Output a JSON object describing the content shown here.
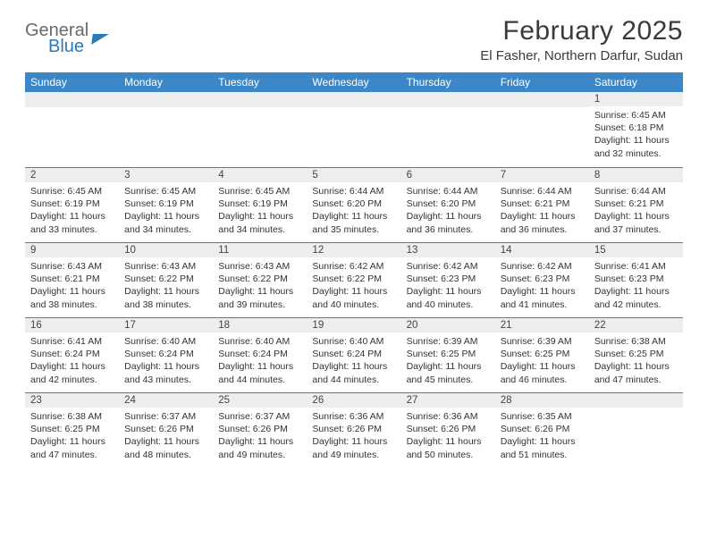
{
  "brand": {
    "top": "General",
    "bottom": "Blue"
  },
  "title": "February 2025",
  "location": "El Fasher, Northern Darfur, Sudan",
  "headerColor": "#3b87c8",
  "dayHeaders": [
    "Sunday",
    "Monday",
    "Tuesday",
    "Wednesday",
    "Thursday",
    "Friday",
    "Saturday"
  ],
  "weeks": [
    [
      {
        "day": "",
        "sunrise": "",
        "sunset": "",
        "daylight": ""
      },
      {
        "day": "",
        "sunrise": "",
        "sunset": "",
        "daylight": ""
      },
      {
        "day": "",
        "sunrise": "",
        "sunset": "",
        "daylight": ""
      },
      {
        "day": "",
        "sunrise": "",
        "sunset": "",
        "daylight": ""
      },
      {
        "day": "",
        "sunrise": "",
        "sunset": "",
        "daylight": ""
      },
      {
        "day": "",
        "sunrise": "",
        "sunset": "",
        "daylight": ""
      },
      {
        "day": "1",
        "sunrise": "Sunrise: 6:45 AM",
        "sunset": "Sunset: 6:18 PM",
        "daylight": "Daylight: 11 hours and 32 minutes."
      }
    ],
    [
      {
        "day": "2",
        "sunrise": "Sunrise: 6:45 AM",
        "sunset": "Sunset: 6:19 PM",
        "daylight": "Daylight: 11 hours and 33 minutes."
      },
      {
        "day": "3",
        "sunrise": "Sunrise: 6:45 AM",
        "sunset": "Sunset: 6:19 PM",
        "daylight": "Daylight: 11 hours and 34 minutes."
      },
      {
        "day": "4",
        "sunrise": "Sunrise: 6:45 AM",
        "sunset": "Sunset: 6:19 PM",
        "daylight": "Daylight: 11 hours and 34 minutes."
      },
      {
        "day": "5",
        "sunrise": "Sunrise: 6:44 AM",
        "sunset": "Sunset: 6:20 PM",
        "daylight": "Daylight: 11 hours and 35 minutes."
      },
      {
        "day": "6",
        "sunrise": "Sunrise: 6:44 AM",
        "sunset": "Sunset: 6:20 PM",
        "daylight": "Daylight: 11 hours and 36 minutes."
      },
      {
        "day": "7",
        "sunrise": "Sunrise: 6:44 AM",
        "sunset": "Sunset: 6:21 PM",
        "daylight": "Daylight: 11 hours and 36 minutes."
      },
      {
        "day": "8",
        "sunrise": "Sunrise: 6:44 AM",
        "sunset": "Sunset: 6:21 PM",
        "daylight": "Daylight: 11 hours and 37 minutes."
      }
    ],
    [
      {
        "day": "9",
        "sunrise": "Sunrise: 6:43 AM",
        "sunset": "Sunset: 6:21 PM",
        "daylight": "Daylight: 11 hours and 38 minutes."
      },
      {
        "day": "10",
        "sunrise": "Sunrise: 6:43 AM",
        "sunset": "Sunset: 6:22 PM",
        "daylight": "Daylight: 11 hours and 38 minutes."
      },
      {
        "day": "11",
        "sunrise": "Sunrise: 6:43 AM",
        "sunset": "Sunset: 6:22 PM",
        "daylight": "Daylight: 11 hours and 39 minutes."
      },
      {
        "day": "12",
        "sunrise": "Sunrise: 6:42 AM",
        "sunset": "Sunset: 6:22 PM",
        "daylight": "Daylight: 11 hours and 40 minutes."
      },
      {
        "day": "13",
        "sunrise": "Sunrise: 6:42 AM",
        "sunset": "Sunset: 6:23 PM",
        "daylight": "Daylight: 11 hours and 40 minutes."
      },
      {
        "day": "14",
        "sunrise": "Sunrise: 6:42 AM",
        "sunset": "Sunset: 6:23 PM",
        "daylight": "Daylight: 11 hours and 41 minutes."
      },
      {
        "day": "15",
        "sunrise": "Sunrise: 6:41 AM",
        "sunset": "Sunset: 6:23 PM",
        "daylight": "Daylight: 11 hours and 42 minutes."
      }
    ],
    [
      {
        "day": "16",
        "sunrise": "Sunrise: 6:41 AM",
        "sunset": "Sunset: 6:24 PM",
        "daylight": "Daylight: 11 hours and 42 minutes."
      },
      {
        "day": "17",
        "sunrise": "Sunrise: 6:40 AM",
        "sunset": "Sunset: 6:24 PM",
        "daylight": "Daylight: 11 hours and 43 minutes."
      },
      {
        "day": "18",
        "sunrise": "Sunrise: 6:40 AM",
        "sunset": "Sunset: 6:24 PM",
        "daylight": "Daylight: 11 hours and 44 minutes."
      },
      {
        "day": "19",
        "sunrise": "Sunrise: 6:40 AM",
        "sunset": "Sunset: 6:24 PM",
        "daylight": "Daylight: 11 hours and 44 minutes."
      },
      {
        "day": "20",
        "sunrise": "Sunrise: 6:39 AM",
        "sunset": "Sunset: 6:25 PM",
        "daylight": "Daylight: 11 hours and 45 minutes."
      },
      {
        "day": "21",
        "sunrise": "Sunrise: 6:39 AM",
        "sunset": "Sunset: 6:25 PM",
        "daylight": "Daylight: 11 hours and 46 minutes."
      },
      {
        "day": "22",
        "sunrise": "Sunrise: 6:38 AM",
        "sunset": "Sunset: 6:25 PM",
        "daylight": "Daylight: 11 hours and 47 minutes."
      }
    ],
    [
      {
        "day": "23",
        "sunrise": "Sunrise: 6:38 AM",
        "sunset": "Sunset: 6:25 PM",
        "daylight": "Daylight: 11 hours and 47 minutes."
      },
      {
        "day": "24",
        "sunrise": "Sunrise: 6:37 AM",
        "sunset": "Sunset: 6:26 PM",
        "daylight": "Daylight: 11 hours and 48 minutes."
      },
      {
        "day": "25",
        "sunrise": "Sunrise: 6:37 AM",
        "sunset": "Sunset: 6:26 PM",
        "daylight": "Daylight: 11 hours and 49 minutes."
      },
      {
        "day": "26",
        "sunrise": "Sunrise: 6:36 AM",
        "sunset": "Sunset: 6:26 PM",
        "daylight": "Daylight: 11 hours and 49 minutes."
      },
      {
        "day": "27",
        "sunrise": "Sunrise: 6:36 AM",
        "sunset": "Sunset: 6:26 PM",
        "daylight": "Daylight: 11 hours and 50 minutes."
      },
      {
        "day": "28",
        "sunrise": "Sunrise: 6:35 AM",
        "sunset": "Sunset: 6:26 PM",
        "daylight": "Daylight: 11 hours and 51 minutes."
      },
      {
        "day": "",
        "sunrise": "",
        "sunset": "",
        "daylight": ""
      }
    ]
  ]
}
